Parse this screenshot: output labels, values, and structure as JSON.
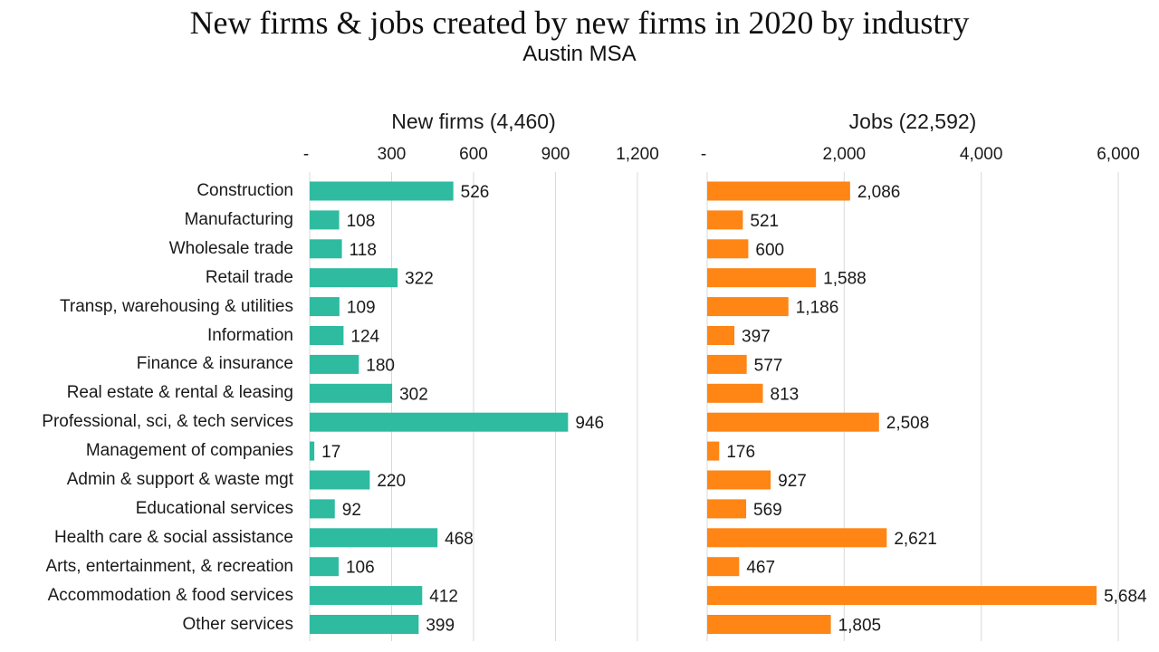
{
  "title": "New firms & jobs created by new firms in 2020 by industry",
  "subtitle": "Austin MSA",
  "colors": {
    "firms": "#2EBBA0",
    "jobs": "#FF8515",
    "grid": "#d9d9d9"
  },
  "chart_data": [
    {
      "type": "bar",
      "orientation": "horizontal",
      "title": "New firms (4,460)",
      "categories": [
        "Construction",
        "Manufacturing",
        "Wholesale trade",
        "Retail trade",
        "Transp, warehousing & utilities",
        "Information",
        "Finance & insurance",
        "Real estate & rental & leasing",
        "Professional, sci, & tech services",
        "Management of companies",
        "Admin & support & waste mgt",
        "Educational services",
        "Health care & social assistance",
        "Arts, entertainment, & recreation",
        "Accommodation & food services",
        "Other services"
      ],
      "values": [
        526,
        108,
        118,
        322,
        109,
        124,
        180,
        302,
        946,
        17,
        220,
        92,
        468,
        106,
        412,
        399
      ],
      "value_labels": [
        "526",
        "108",
        "118",
        "322",
        "109",
        "124",
        "180",
        "302",
        "946",
        "17",
        "220",
        "92",
        "468",
        "106",
        "412",
        "399"
      ],
      "xlim": [
        0,
        1200
      ],
      "ticks": [
        0,
        300,
        600,
        900,
        1200
      ],
      "tick_labels": [
        "-",
        "300",
        "600",
        "900",
        "1,200"
      ],
      "axis_position": "top",
      "grid": true
    },
    {
      "type": "bar",
      "orientation": "horizontal",
      "title": "Jobs (22,592)",
      "categories": [
        "Construction",
        "Manufacturing",
        "Wholesale trade",
        "Retail trade",
        "Transp, warehousing & utilities",
        "Information",
        "Finance & insurance",
        "Real estate & rental & leasing",
        "Professional, sci, & tech services",
        "Management of companies",
        "Admin & support & waste mgt",
        "Educational services",
        "Health care & social assistance",
        "Arts, entertainment, & recreation",
        "Accommodation & food services",
        "Other services"
      ],
      "values": [
        2086,
        521,
        600,
        1588,
        1186,
        397,
        577,
        813,
        2508,
        176,
        927,
        569,
        2621,
        467,
        5684,
        1805
      ],
      "value_labels": [
        "2,086",
        "521",
        "600",
        "1,588",
        "1,186",
        "397",
        "577",
        "813",
        "2,508",
        "176",
        "927",
        "569",
        "2,621",
        "467",
        "5,684",
        "1,805"
      ],
      "xlim": [
        0,
        6000
      ],
      "ticks": [
        0,
        2000,
        4000,
        6000
      ],
      "tick_labels": [
        "-",
        "2,000",
        "4,000",
        "6,000"
      ],
      "axis_position": "top",
      "grid": true
    }
  ]
}
